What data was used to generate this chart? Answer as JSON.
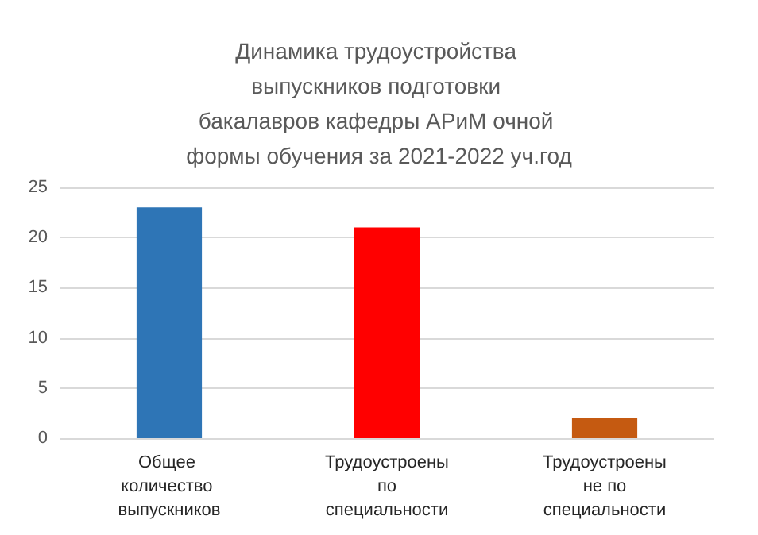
{
  "chart_data": {
    "type": "bar",
    "title": "Динамика трудоустройства выпускников подготовки бакалавров кафедры АРиМ очной формы обучения за 2021-2022 уч.год",
    "categories": [
      "Общее количество выпускников",
      "Трудоустроены по специальности",
      "Трудоустроены не по специальности"
    ],
    "values": [
      23,
      21,
      2
    ],
    "colors": [
      "#2e75b6",
      "#ff0000",
      "#c55a11"
    ],
    "ylim": [
      0,
      25
    ],
    "yticks": [
      0,
      5,
      10,
      15,
      20,
      25
    ],
    "grid": "y"
  }
}
